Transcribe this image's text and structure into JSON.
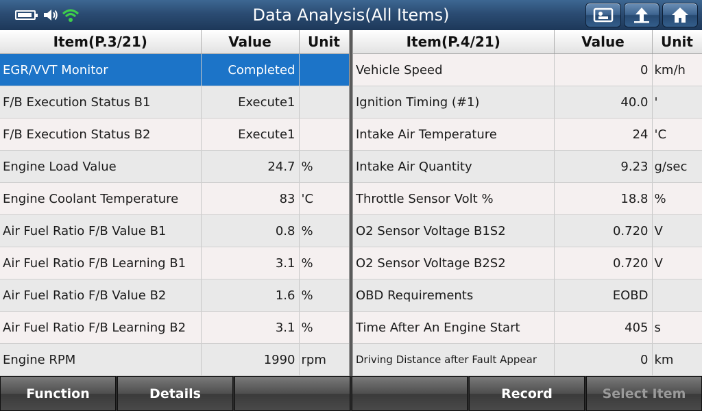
{
  "title": "Data Analysis(All Items)",
  "status": {
    "battery_level": 0.75,
    "icons": [
      "battery-icon",
      "speaker-icon",
      "wifi-icon"
    ]
  },
  "toolbar_icons": [
    "screenshot-icon",
    "back-icon",
    "home-icon"
  ],
  "left": {
    "headers": {
      "item": "Item(P.3/21)",
      "value": "Value",
      "unit": "Unit"
    },
    "rows": [
      {
        "item": "EGR/VVT Monitor",
        "value": "Completed",
        "unit": ""
      },
      {
        "item": "F/B Execution Status B1",
        "value": "Execute1",
        "unit": ""
      },
      {
        "item": "F/B Execution Status B2",
        "value": "Execute1",
        "unit": ""
      },
      {
        "item": "Engine Load Value",
        "value": "24.7",
        "unit": "%"
      },
      {
        "item": "Engine Coolant Temperature",
        "value": "83",
        "unit": "'C"
      },
      {
        "item": "Air Fuel Ratio F/B Value B1",
        "value": "0.8",
        "unit": "%"
      },
      {
        "item": "Air Fuel Ratio F/B Learning B1",
        "value": "3.1",
        "unit": "%"
      },
      {
        "item": "Air Fuel Ratio F/B Value B2",
        "value": "1.6",
        "unit": "%"
      },
      {
        "item": "Air Fuel Ratio F/B Learning B2",
        "value": "3.1",
        "unit": "%"
      },
      {
        "item": "Engine RPM",
        "value": "1990",
        "unit": "rpm"
      }
    ]
  },
  "right": {
    "headers": {
      "item": "Item(P.4/21)",
      "value": "Value",
      "unit": "Unit"
    },
    "rows": [
      {
        "item": "Vehicle Speed",
        "value": "0",
        "unit": "km/h"
      },
      {
        "item": "Ignition Timing (#1)",
        "value": "40.0",
        "unit": "'"
      },
      {
        "item": "Intake Air Temperature",
        "value": "24",
        "unit": "'C"
      },
      {
        "item": "Intake Air Quantity",
        "value": "9.23",
        "unit": "g/sec"
      },
      {
        "item": "Throttle Sensor Volt %",
        "value": "18.8",
        "unit": "%"
      },
      {
        "item": "O2 Sensor Voltage B1S2",
        "value": "0.720",
        "unit": "V"
      },
      {
        "item": "O2 Sensor Voltage B2S2",
        "value": "0.720",
        "unit": "V"
      },
      {
        "item": "OBD Requirements",
        "value": "EOBD",
        "unit": ""
      },
      {
        "item": "Time After An Engine Start",
        "value": "405",
        "unit": "s"
      },
      {
        "item": "Driving Distance after Fault Appear",
        "value": "0",
        "unit": "km"
      }
    ]
  },
  "bottom": {
    "function": "Function",
    "details": "Details",
    "empty1": "",
    "empty2": "",
    "record": "Record",
    "select_item": "Select Item"
  }
}
